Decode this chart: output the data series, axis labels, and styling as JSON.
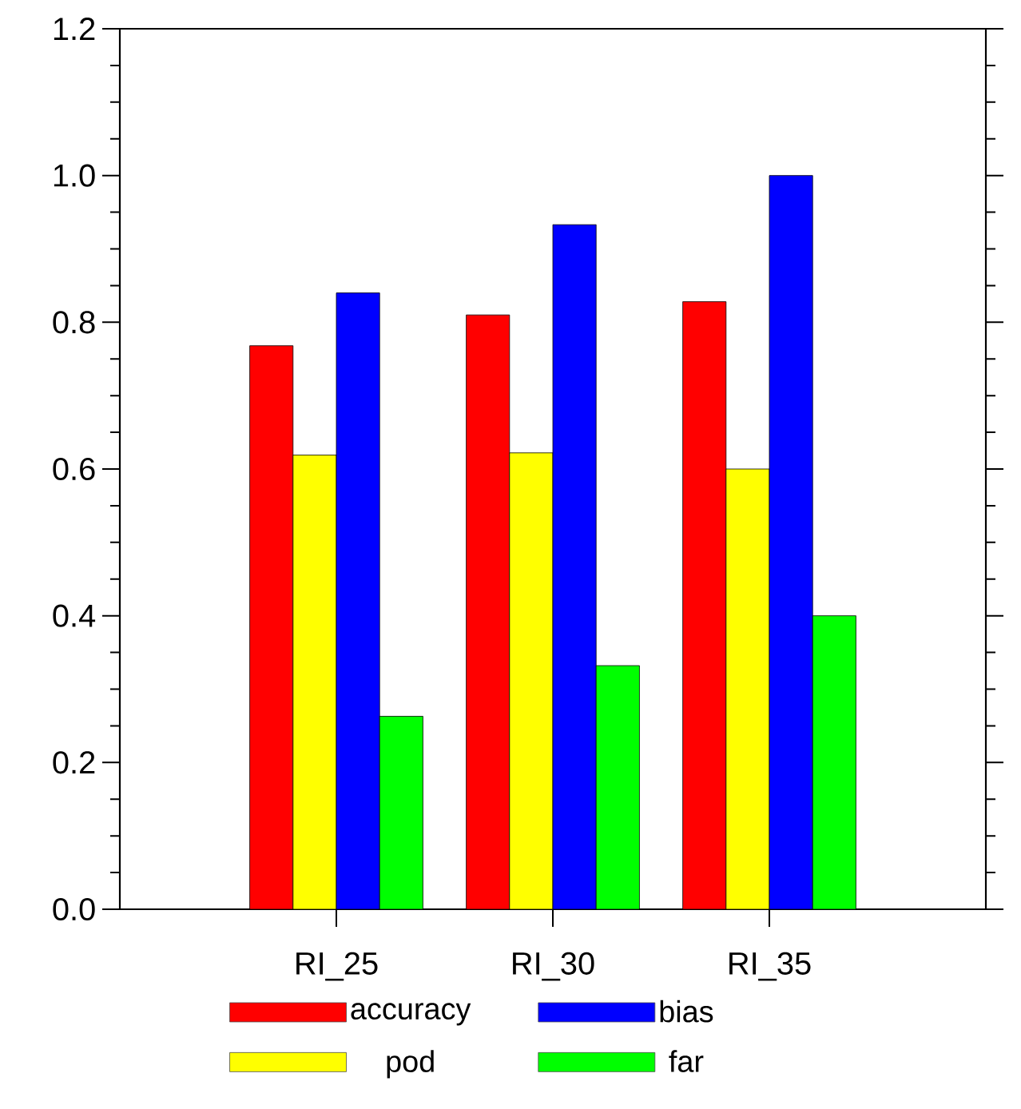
{
  "chart_data": {
    "type": "bar",
    "categories": [
      "RI_25",
      "RI_30",
      "RI_35"
    ],
    "series": [
      {
        "name": "accuracy",
        "color": "#ff0000",
        "values": [
          0.768,
          0.81,
          0.828
        ]
      },
      {
        "name": "pod",
        "color": "#ffff00",
        "values": [
          0.619,
          0.622,
          0.6
        ]
      },
      {
        "name": "bias",
        "color": "#0000ff",
        "values": [
          0.84,
          0.933,
          1.0
        ]
      },
      {
        "name": "far",
        "color": "#00ff00",
        "values": [
          0.263,
          0.332,
          0.4
        ]
      }
    ],
    "ylim": [
      0,
      1.2
    ],
    "yticks": [
      {
        "value": 0,
        "label": "0.0"
      },
      0.2,
      0.4,
      0.6,
      0.8,
      {
        "value": 1.0,
        "label": "1.0"
      },
      1.2
    ],
    "legend": "bottom"
  }
}
